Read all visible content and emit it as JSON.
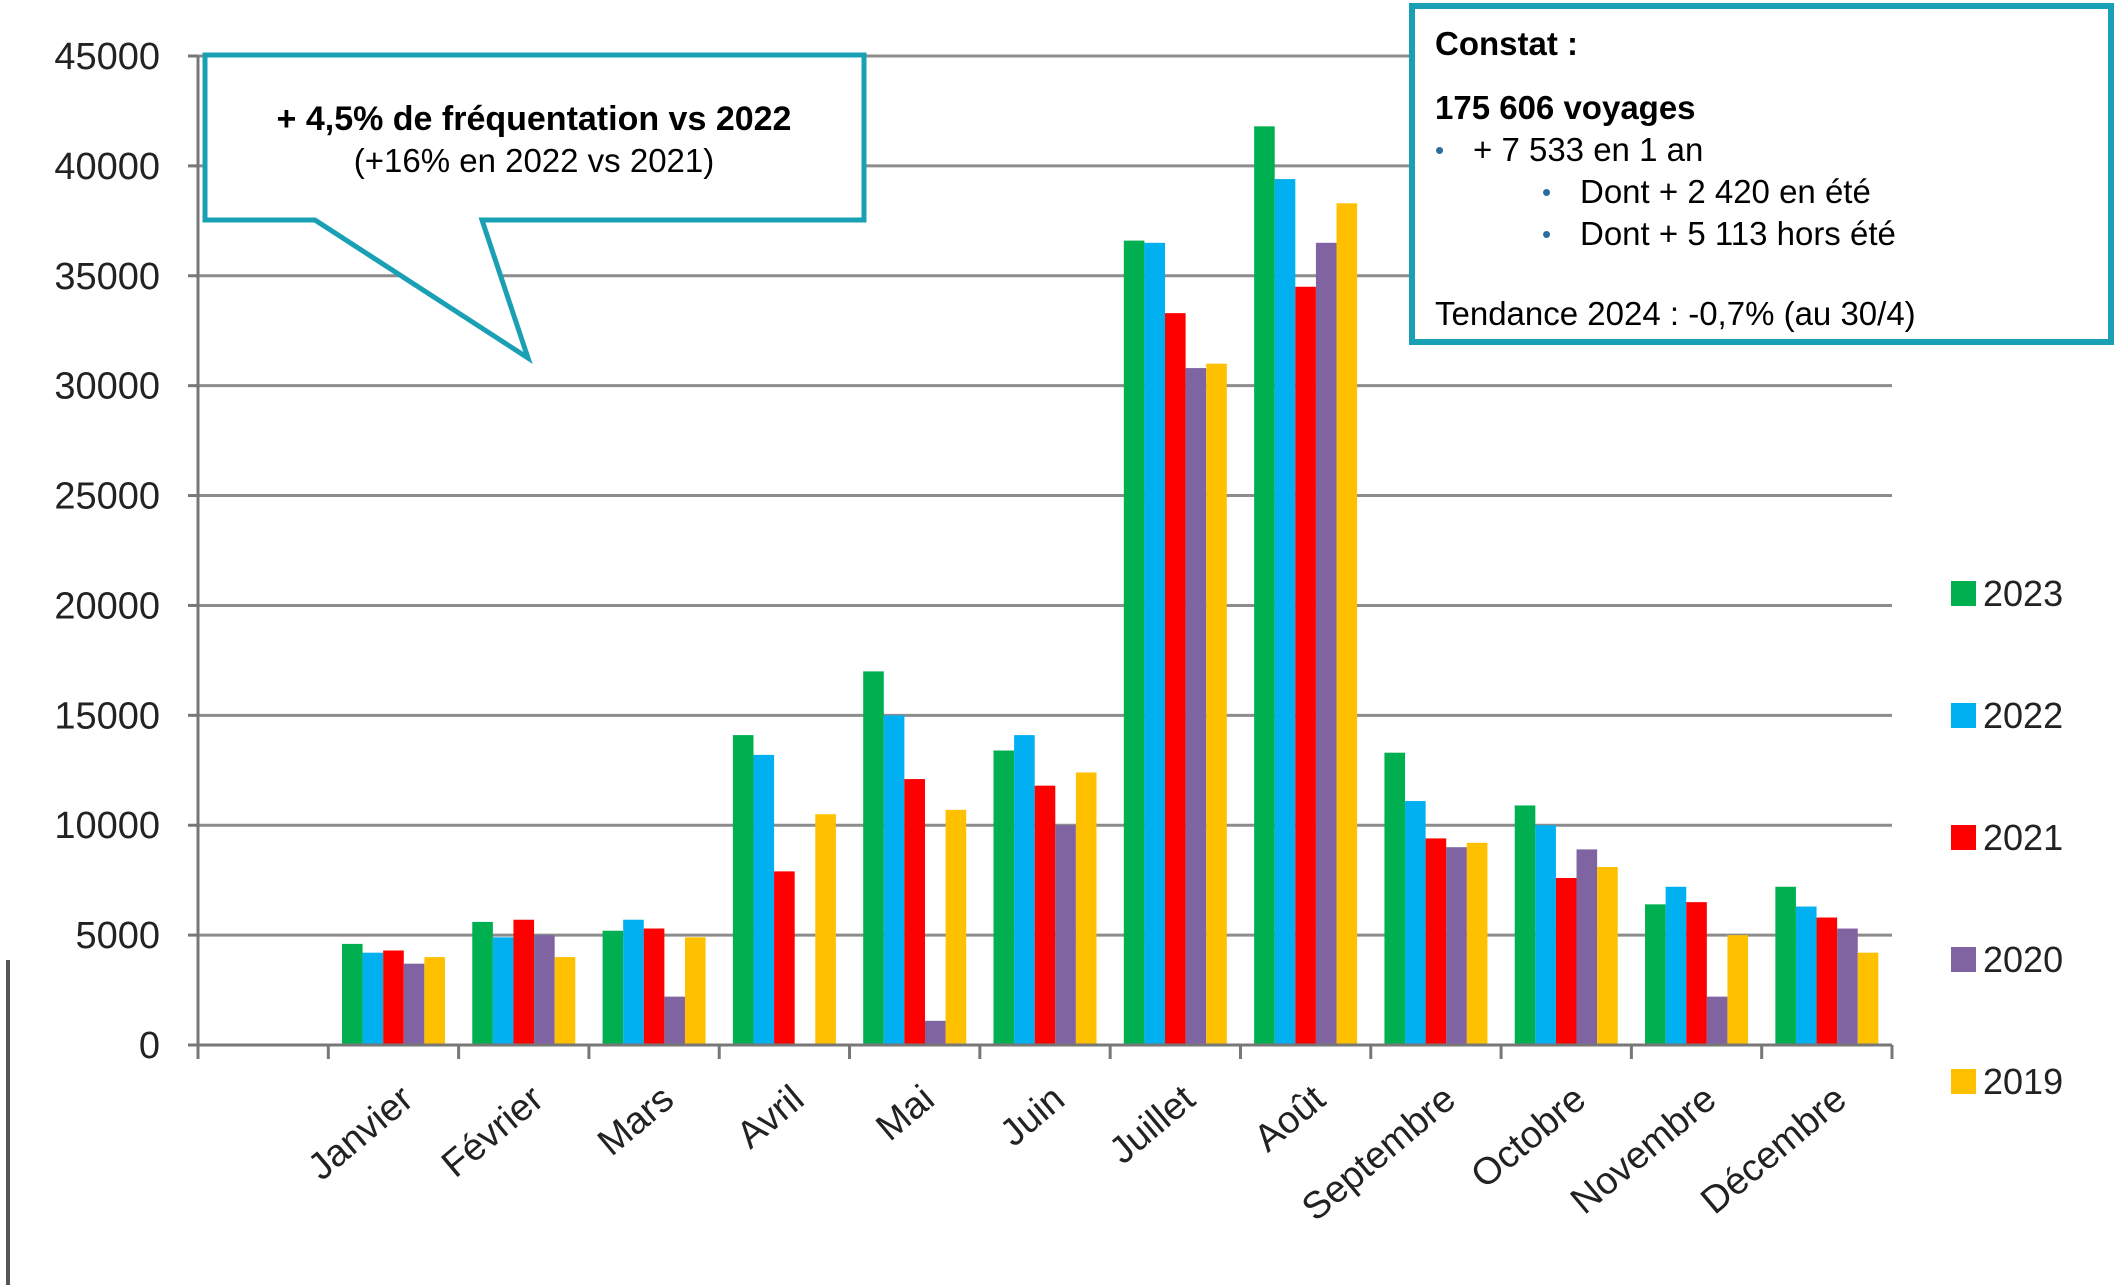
{
  "chart_data": {
    "type": "bar",
    "title": "",
    "xlabel": "",
    "ylabel": "",
    "ylim": [
      0,
      45000
    ],
    "yticks": [
      0,
      5000,
      10000,
      15000,
      20000,
      25000,
      30000,
      35000,
      40000,
      45000
    ],
    "grid": true,
    "legend_position": "right",
    "categories": [
      "Janvier",
      "Février",
      "Mars",
      "Avril",
      "Mai",
      "Juin",
      "Juillet",
      "Août",
      "Septembre",
      "Octobre",
      "Novembre",
      "Décembre"
    ],
    "series": [
      {
        "name": "2023",
        "color": "#00b050",
        "values": [
          4600,
          5600,
          5200,
          14100,
          17000,
          13400,
          36600,
          41800,
          13300,
          10900,
          6400,
          7200
        ]
      },
      {
        "name": "2022",
        "color": "#00b0f0",
        "values": [
          4200,
          4900,
          5700,
          13200,
          15000,
          14100,
          36500,
          39400,
          11100,
          10000,
          7200,
          6300
        ]
      },
      {
        "name": "2021",
        "color": "#ff0000",
        "values": [
          4300,
          5700,
          5300,
          7900,
          12100,
          11800,
          33300,
          34500,
          9400,
          7600,
          6500,
          5800
        ]
      },
      {
        "name": "2020",
        "color": "#8064a2",
        "values": [
          3700,
          5000,
          2200,
          0,
          1100,
          10000,
          30800,
          36500,
          9000,
          8900,
          2200,
          5300
        ]
      },
      {
        "name": "2019",
        "color": "#ffc000",
        "values": [
          4000,
          4000,
          4900,
          10500,
          10700,
          12400,
          31000,
          38300,
          9200,
          8100,
          5000,
          4200
        ]
      }
    ]
  },
  "callout": {
    "line1": "+ 4,5% de fréquentation vs 2022",
    "line2": "(+16% en 2022 vs 2021)"
  },
  "constat": {
    "title": "Constat :",
    "total": "175 606 voyages",
    "bullet1": "+ 7 533 en 1 an",
    "sub1": "Dont + 2 420 en été",
    "sub2": "Dont + 5 113 hors été",
    "trend": "Tendance 2024 : -0,7% (au 30/4)"
  },
  "colors": {
    "accent_border": "#1aa0b5",
    "grid": "#8c8c8c"
  }
}
